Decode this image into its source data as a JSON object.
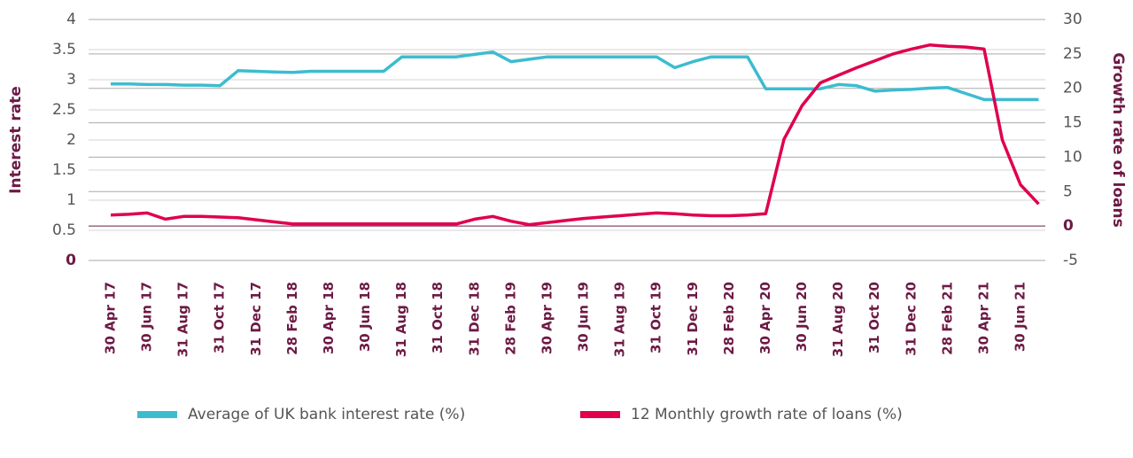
{
  "chart_data": {
    "type": "line",
    "ylabel": "Interest rate",
    "y2label": "Growth rate of loans",
    "categories": [
      "30 Apr 17",
      null,
      "30 Jun 17",
      null,
      "31 Aug 17",
      null,
      "31 Oct 17",
      null,
      "31 Dec 17",
      null,
      "28 Feb 18",
      null,
      "30 Apr 18",
      null,
      "30 Jun 18",
      null,
      "31 Aug 18",
      null,
      "31 Oct 18",
      null,
      "31 Dec 18",
      null,
      "28 Feb 19",
      null,
      "30 Apr 19",
      null,
      "30 Jun 19",
      null,
      "31 Aug 19",
      null,
      "31 Oct 19",
      null,
      "31 Dec 19",
      null,
      "28 Feb 20",
      null,
      "30 Apr 20",
      null,
      "30 Jun 20",
      null,
      "31 Aug 20",
      null,
      "31 Oct 20",
      null,
      "31 Dec 20",
      null,
      "28 Feb 21",
      null,
      "30 Apr 21",
      null,
      "30 Jun 21",
      null
    ],
    "ylim": [
      0,
      4
    ],
    "yticks": [
      0,
      0.5,
      1,
      1.5,
      2,
      2.5,
      3,
      3.5,
      4
    ],
    "y2lim": [
      -5,
      30
    ],
    "y2ticks": [
      -5,
      0,
      5,
      10,
      15,
      20,
      25,
      30
    ],
    "grid": true,
    "legend": "bottom",
    "series": [
      {
        "name": "Average of UK bank interest rate (%)",
        "color": "#3cbccf",
        "values": [
          2.93,
          2.93,
          2.92,
          2.92,
          2.91,
          2.91,
          2.9,
          3.15,
          3.14,
          3.13,
          3.12,
          3.14,
          3.14,
          3.14,
          3.14,
          3.14,
          3.38,
          3.38,
          3.38,
          3.38,
          3.42,
          3.46,
          3.3,
          3.34,
          3.38,
          3.38,
          3.38,
          3.38,
          3.38,
          3.38,
          3.38,
          3.2,
          3.3,
          3.38,
          3.38,
          3.38,
          2.85,
          2.85,
          2.85,
          2.85,
          2.92,
          2.9,
          2.81,
          2.83,
          2.84,
          2.86,
          2.87,
          2.77,
          2.67,
          2.67,
          2.67,
          2.67
        ]
      },
      {
        "name": "12 Monthly growth rate of loans (%)",
        "color": "#e0004d",
        "axis": "y2",
        "values": [
          1.6,
          1.7,
          1.9,
          1.0,
          1.4,
          1.4,
          1.3,
          1.2,
          0.9,
          0.6,
          0.3,
          0.3,
          0.3,
          0.3,
          0.3,
          0.3,
          0.3,
          0.3,
          0.3,
          0.3,
          1.0,
          1.4,
          0.7,
          0.2,
          0.5,
          0.8,
          1.1,
          1.3,
          1.5,
          1.7,
          1.9,
          1.8,
          1.6,
          1.5,
          1.5,
          1.6,
          1.8,
          12.6,
          17.5,
          20.8,
          21.9,
          23.0,
          24.0,
          25.0,
          25.7,
          26.3,
          26.1,
          26.0,
          25.7,
          12.5,
          6.0,
          3.2
        ]
      }
    ]
  }
}
